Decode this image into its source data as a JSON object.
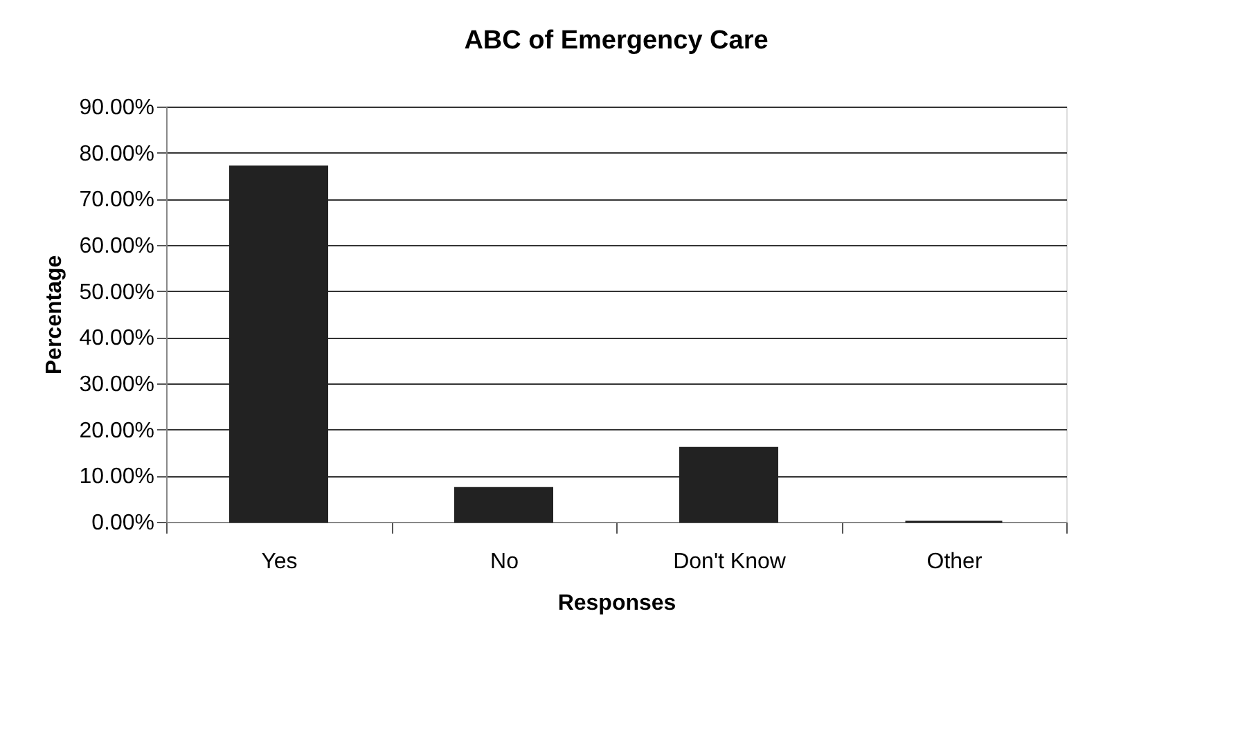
{
  "chart_data": {
    "type": "bar",
    "title": "ABC of Emergency Care",
    "xlabel": "Responses",
    "ylabel": "Percentage",
    "categories": [
      "Yes",
      "No",
      "Don't Know",
      "Other"
    ],
    "values": [
      77,
      7.3,
      16,
      0
    ],
    "color": "#222222",
    "ylim": [
      0,
      90
    ],
    "yticks": [
      {
        "value": 0,
        "label": "0.00%"
      },
      {
        "value": 10,
        "label": "10.00%"
      },
      {
        "value": 20,
        "label": "20.00%"
      },
      {
        "value": 30,
        "label": "30.00%"
      },
      {
        "value": 40,
        "label": "40.00%"
      },
      {
        "value": 50,
        "label": "50.00%"
      },
      {
        "value": 60,
        "label": "60.00%"
      },
      {
        "value": 70,
        "label": "70.00%"
      },
      {
        "value": 80,
        "label": "80.00%"
      },
      {
        "value": 90,
        "label": "90.00%"
      }
    ],
    "grid": "y"
  }
}
